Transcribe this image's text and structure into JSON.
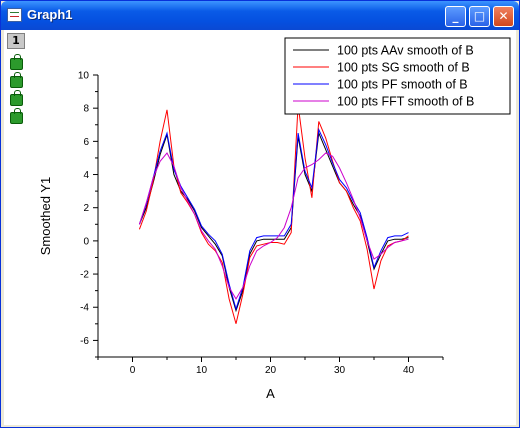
{
  "window": {
    "title": "Graph1",
    "icon": "graph-window-icon"
  },
  "titlebar_buttons": {
    "minimize": "_",
    "maximize": "□",
    "close": "✕"
  },
  "layer_tab": "1",
  "lock_icons": [
    "lock-icon",
    "lock-icon",
    "lock-icon",
    "lock-icon"
  ],
  "chart_data": {
    "type": "line",
    "xlabel": "A",
    "ylabel": "Smoothed Y1",
    "xlim": [
      -5,
      45
    ],
    "ylim": [
      -7,
      10
    ],
    "xticks": [
      0,
      10,
      20,
      30,
      40
    ],
    "yticks": [
      -6,
      -4,
      -2,
      0,
      2,
      4,
      6,
      8,
      10
    ],
    "legend_position": "top-right",
    "series": [
      {
        "name": "100 pts AAv smooth of B",
        "color": "#000000",
        "x": [
          1,
          2,
          3,
          4,
          5,
          6,
          7,
          8,
          9,
          10,
          11,
          12,
          13,
          14,
          15,
          16,
          17,
          18,
          19,
          20,
          21,
          22,
          23,
          24,
          25,
          26,
          27,
          28,
          29,
          30,
          31,
          32,
          33,
          34,
          35,
          36,
          37,
          38,
          39,
          40
        ],
        "y": [
          1.0,
          2.0,
          3.5,
          5.2,
          6.4,
          4.0,
          3.0,
          2.5,
          1.8,
          0.8,
          0.3,
          -0.2,
          -0.9,
          -2.8,
          -4.2,
          -3.0,
          -0.8,
          0.0,
          0.1,
          0.1,
          0.1,
          0.1,
          0.8,
          6.3,
          4.0,
          3.0,
          6.5,
          5.5,
          4.5,
          3.5,
          3.0,
          2.2,
          1.5,
          0.0,
          -1.7,
          -0.8,
          0.0,
          0.1,
          0.1,
          0.2
        ]
      },
      {
        "name": "100 pts SG smooth of B",
        "color": "#ff0000",
        "x": [
          1,
          2,
          3,
          4,
          5,
          6,
          7,
          8,
          9,
          10,
          11,
          12,
          13,
          14,
          15,
          16,
          17,
          18,
          19,
          20,
          21,
          22,
          23,
          24,
          25,
          26,
          27,
          28,
          29,
          30,
          31,
          32,
          33,
          34,
          35,
          36,
          37,
          38,
          39,
          40
        ],
        "y": [
          0.7,
          1.8,
          3.6,
          6.0,
          7.9,
          4.5,
          2.9,
          2.3,
          1.6,
          0.5,
          -0.2,
          -0.6,
          -1.3,
          -3.5,
          -5.0,
          -3.2,
          -1.0,
          -0.3,
          -0.2,
          -0.1,
          -0.1,
          -0.2,
          0.5,
          8.2,
          5.0,
          2.6,
          7.2,
          6.2,
          4.8,
          3.5,
          3.0,
          2.0,
          1.2,
          -0.5,
          -2.9,
          -1.2,
          -0.3,
          -0.1,
          0.0,
          0.3
        ]
      },
      {
        "name": "100 pts PF smooth of B",
        "color": "#0000ff",
        "x": [
          1,
          2,
          3,
          4,
          5,
          6,
          7,
          8,
          9,
          10,
          11,
          12,
          13,
          14,
          15,
          16,
          17,
          18,
          19,
          20,
          21,
          22,
          23,
          24,
          25,
          26,
          27,
          28,
          29,
          30,
          31,
          32,
          33,
          34,
          35,
          36,
          37,
          38,
          39,
          40
        ],
        "y": [
          1.0,
          2.2,
          3.8,
          5.4,
          6.5,
          4.3,
          3.3,
          2.6,
          1.9,
          0.9,
          0.4,
          0.0,
          -0.8,
          -2.6,
          -4.1,
          -2.8,
          -0.6,
          0.2,
          0.3,
          0.3,
          0.3,
          0.3,
          1.0,
          6.5,
          4.2,
          3.2,
          6.7,
          5.8,
          4.7,
          3.7,
          3.2,
          2.4,
          1.7,
          0.2,
          -1.6,
          -0.6,
          0.2,
          0.3,
          0.3,
          0.5
        ]
      },
      {
        "name": "100 pts FFT smooth of B",
        "color": "#cc00cc",
        "x": [
          1,
          2,
          3,
          4,
          5,
          6,
          7,
          8,
          9,
          10,
          11,
          12,
          13,
          14,
          15,
          16,
          17,
          18,
          19,
          20,
          21,
          22,
          23,
          24,
          25,
          26,
          27,
          28,
          29,
          30,
          31,
          32,
          33,
          34,
          35,
          36,
          37,
          38,
          39,
          40
        ],
        "y": [
          1.0,
          2.3,
          3.8,
          4.8,
          5.3,
          4.5,
          3.2,
          2.4,
          1.6,
          0.6,
          0.0,
          -0.5,
          -1.5,
          -2.8,
          -3.5,
          -2.8,
          -1.5,
          -0.6,
          -0.3,
          -0.1,
          0.2,
          0.8,
          2.0,
          3.8,
          4.4,
          4.6,
          4.9,
          5.3,
          5.1,
          4.4,
          3.5,
          2.5,
          1.4,
          0.0,
          -1.1,
          -0.8,
          -0.4,
          -0.1,
          0.0,
          0.1
        ]
      }
    ]
  }
}
